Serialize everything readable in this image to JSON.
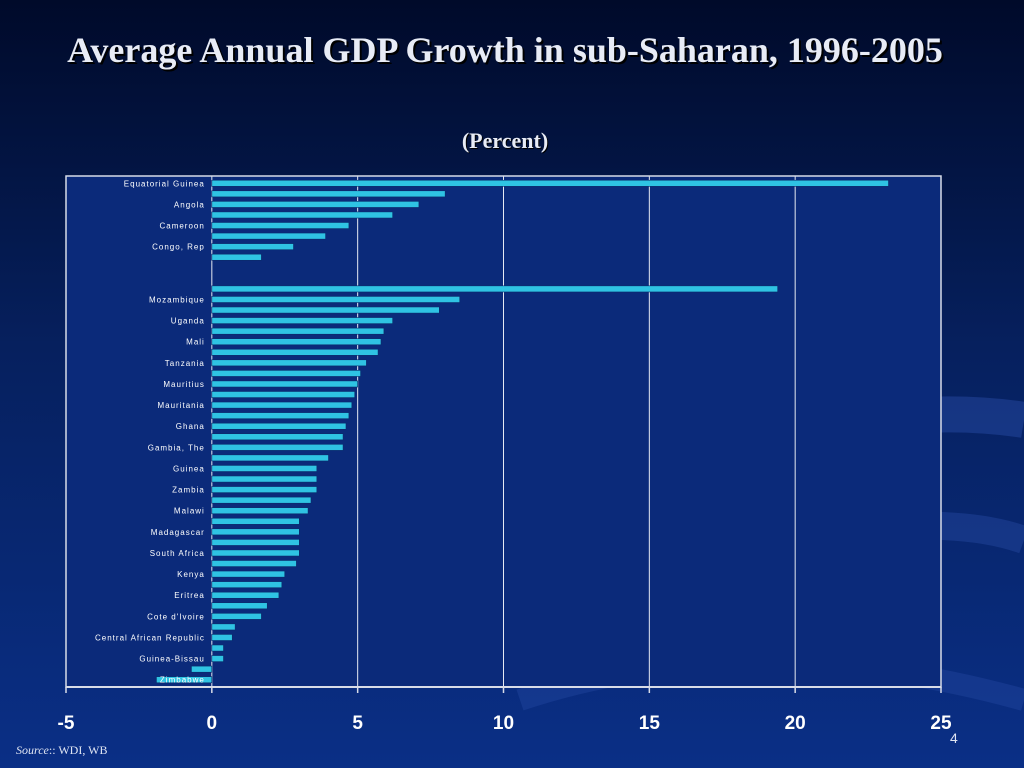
{
  "slide": {
    "title": "Average Annual GDP Growth in sub-Saharan, 1996-2005",
    "subtitle": "(Percent)",
    "source_label": "Source",
    "source_text": ":: WDI, WB",
    "page_number": "4"
  },
  "chart_data": {
    "type": "bar",
    "orientation": "horizontal",
    "categories": [
      "Equatorial Guinea",
      "",
      "Angola",
      "",
      "Cameroon",
      "",
      "Congo, Rep",
      "",
      "",
      "",
      "",
      "Mozambique",
      "",
      "Uganda",
      "",
      "Mali",
      "",
      "Tanzania",
      "",
      "Mauritius",
      "",
      "Mauritania",
      "",
      "Ghana",
      "",
      "Gambia, The",
      "",
      "Guinea",
      "",
      "Zambia",
      "",
      "Malawi",
      "",
      "Madagascar",
      "",
      "South Africa",
      "",
      "Kenya",
      "",
      "Eritrea",
      "",
      "Cote d'Ivoire",
      "",
      "Central African Republic",
      "",
      "Guinea-Bissau",
      "",
      "Zimbabwe"
    ],
    "values": [
      23.2,
      8.0,
      7.1,
      6.2,
      4.7,
      3.9,
      2.8,
      1.7,
      null,
      null,
      19.4,
      8.5,
      7.8,
      6.2,
      5.9,
      5.8,
      5.7,
      5.3,
      5.1,
      5.0,
      4.9,
      4.8,
      4.7,
      4.6,
      4.5,
      4.5,
      4.0,
      3.6,
      3.6,
      3.6,
      3.4,
      3.3,
      3.0,
      3.0,
      3.0,
      3.0,
      2.9,
      2.5,
      2.4,
      2.3,
      1.9,
      1.7,
      0.8,
      0.7,
      0.4,
      0.4,
      -0.7,
      -1.9
    ],
    "xlim": [
      -5,
      25
    ],
    "xticks": [
      "-5",
      "0",
      "5",
      "10",
      "15",
      "20",
      "25"
    ],
    "grid": true,
    "colors": {
      "bar_fill": "#2fc3e3",
      "bar_edge": "#0a2a6a",
      "plot_bg": "#0b2a7a",
      "frame": "#d8dce8",
      "grid": "#e6e9f2",
      "text": "#ffffff"
    }
  }
}
